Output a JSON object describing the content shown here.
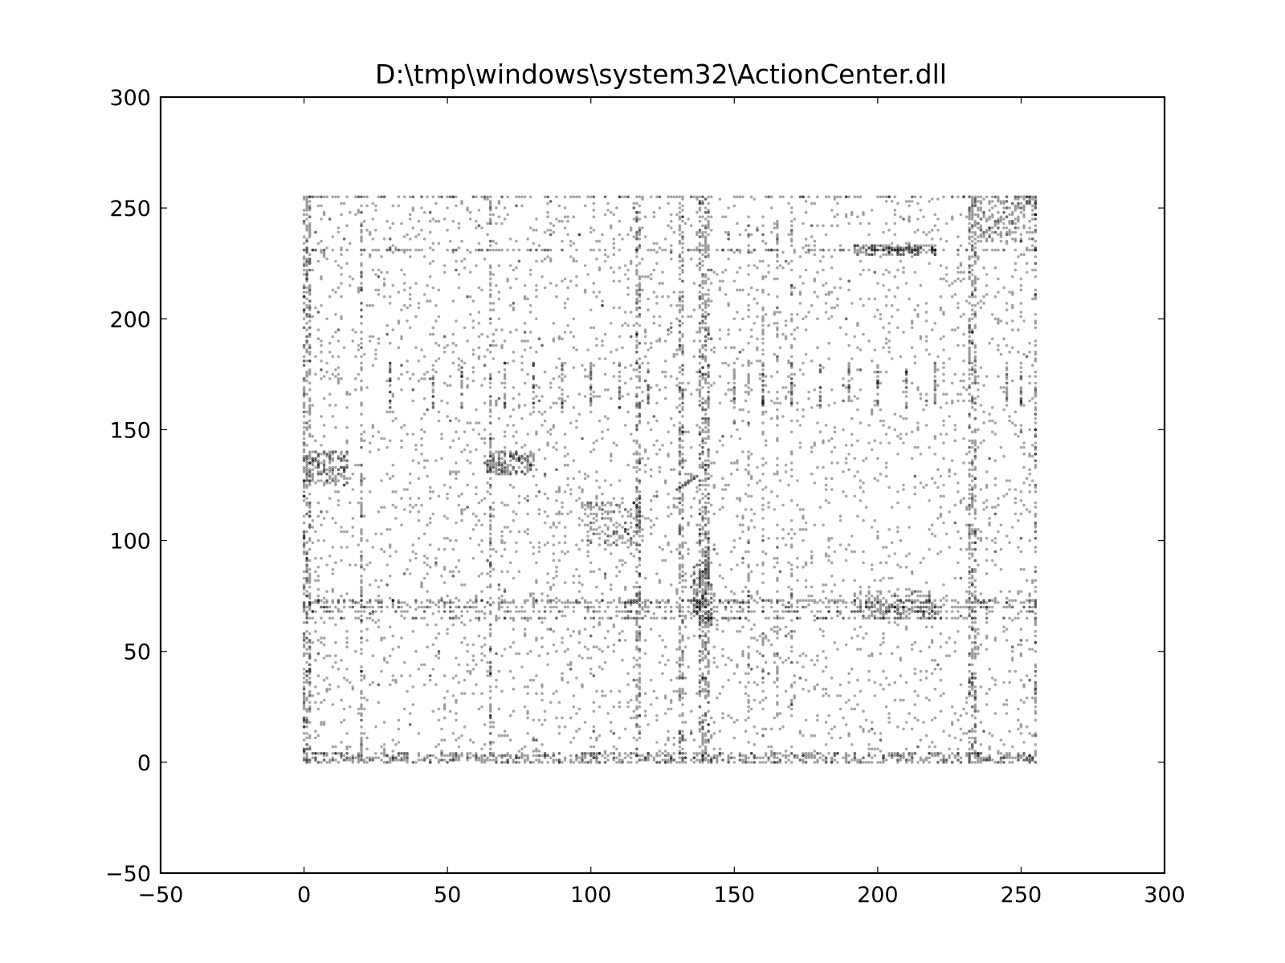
{
  "chart_data": {
    "type": "scatter",
    "title": "D:\\tmp\\windows\\system32\\ActionCenter.dll",
    "xlabel": "",
    "ylabel": "",
    "xlim": [
      -50,
      300
    ],
    "ylim": [
      -50,
      300
    ],
    "x_ticks": [
      "−50",
      "0",
      "50",
      "100",
      "150",
      "200",
      "250",
      "300"
    ],
    "y_ticks": [
      "−50",
      "0",
      "50",
      "100",
      "150",
      "200",
      "250",
      "300"
    ],
    "grid": false,
    "legend": "none",
    "marker_color": "#000000",
    "marker_alpha": 0.35,
    "data_extent": {
      "x": [
        0,
        255
      ],
      "y": [
        0,
        255
      ]
    },
    "dense_rows_y": [
      0,
      1,
      2,
      3,
      4,
      65,
      68,
      70,
      72,
      73,
      231,
      255
    ],
    "dense_columns_x": [
      0,
      1,
      2,
      20,
      65,
      116,
      117,
      131,
      132,
      138,
      139,
      140,
      141,
      232,
      233,
      234,
      255
    ],
    "clusters": [
      {
        "x": [
          97,
          118
        ],
        "y": [
          98,
          117
        ]
      },
      {
        "x": [
          64,
          80
        ],
        "y": [
          130,
          140
        ]
      },
      {
        "x": [
          136,
          142
        ],
        "y": [
          63,
          90
        ]
      },
      {
        "x": [
          192,
          220
        ],
        "y": [
          65,
          77
        ]
      },
      {
        "x": [
          192,
          220
        ],
        "y": [
          229,
          233
        ]
      },
      {
        "x": [
          235,
          255
        ],
        "y": [
          235,
          255
        ]
      },
      {
        "x": [
          0,
          15
        ],
        "y": [
          125,
          140
        ]
      }
    ],
    "diagonal_segments": [
      {
        "from": [
          234,
          236
        ],
        "to": [
          255,
          255
        ]
      },
      {
        "from": [
          130,
          123
        ],
        "to": [
          137,
          129
        ]
      }
    ]
  }
}
